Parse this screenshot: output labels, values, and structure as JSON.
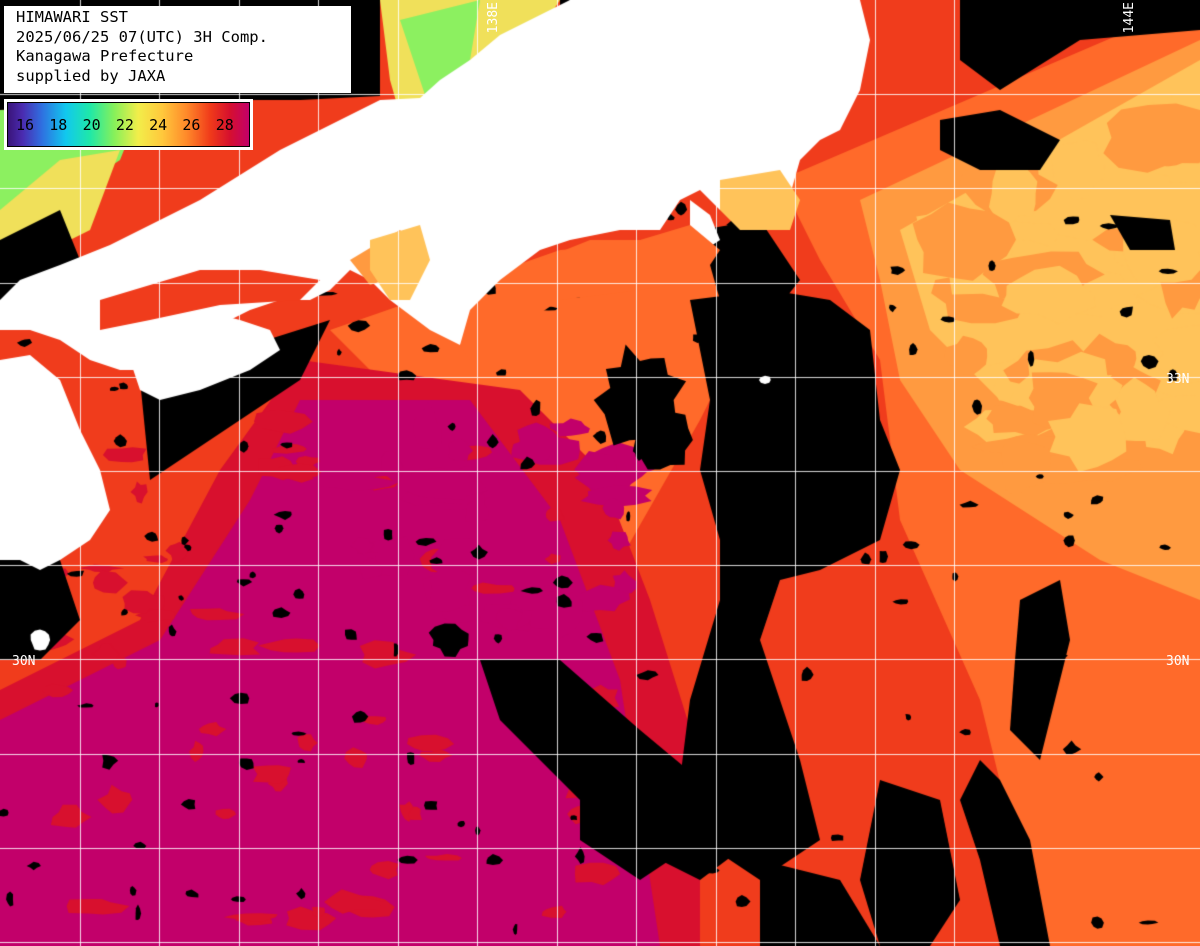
{
  "title_block": {
    "line1": "HIMAWARI SST",
    "line2": "2025/06/25 07(UTC) 3H Comp.",
    "line3": "Kanagawa Prefecture",
    "line4": "supplied by JAXA"
  },
  "legend": {
    "ticks": [
      "16",
      "18",
      "20",
      "22",
      "24",
      "26",
      "28"
    ],
    "colors": [
      "#3a147a",
      "#2f6fe0",
      "#11c8ee",
      "#86f05a",
      "#f2ee4a",
      "#ff8a2a",
      "#d6102e",
      "#c2006a"
    ]
  },
  "grid_labels": {
    "lat_33_right": "33N",
    "lat_30_left": "30N",
    "lat_30_right": "30N",
    "lon_top_1": "138E",
    "lon_top_2": "144E"
  },
  "map_colors": {
    "land": "#ffffff",
    "cloud": "#000000",
    "grid": "#ffffff",
    "sst_29": "#c2006a",
    "sst_28": "#d8102e",
    "sst_27": "#f03c1c",
    "sst_26": "#ff6a2a",
    "sst_25": "#ff9a40",
    "sst_24": "#ffc35a",
    "sst_23": "#f0e05a",
    "sst_21": "#8cf060"
  }
}
